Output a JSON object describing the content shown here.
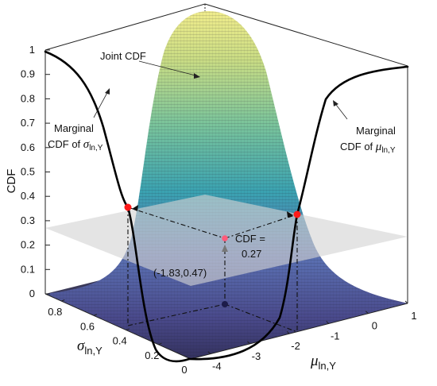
{
  "colors": {
    "surface_low": "#3c3a6e",
    "surface_mid": "#38a6b0",
    "surface_high": "#e8ea8a",
    "marginal_curve": "#000000",
    "marker_red": "#ff1a1a",
    "marker_dark": "#1c1c4a",
    "plane": "#cfcfcf"
  },
  "chart_data": {
    "type": "surface",
    "zlabel": "CDF",
    "xlabel": {
      "base": "σ",
      "sub": "ln,Y"
    },
    "ylabel": {
      "base": "μ",
      "sub": "ln,Y"
    },
    "xlim": [
      0,
      0.9
    ],
    "ylim": [
      -4.5,
      1
    ],
    "zlim": [
      0,
      1
    ],
    "x_ticks": [
      "0",
      "0.2",
      "0.4",
      "0.6",
      "0.8"
    ],
    "x_tick_values": [
      0,
      0.2,
      0.4,
      0.6,
      0.8
    ],
    "y_ticks": [
      "-4",
      "-3",
      "-2",
      "-1",
      "0",
      "1"
    ],
    "y_tick_values": [
      -4,
      -3,
      -2,
      -1,
      0,
      1
    ],
    "z_ticks": [
      "0",
      "0.1",
      "0.2",
      "0.3",
      "0.4",
      "0.5",
      "0.6",
      "0.7",
      "0.8",
      "0.9",
      "1"
    ],
    "z_tick_values": [
      0,
      0.1,
      0.2,
      0.3,
      0.4,
      0.5,
      0.6,
      0.7,
      0.8,
      0.9,
      1
    ],
    "point": {
      "sigma": 0.47,
      "mu": -1.83,
      "cdf": 0.27
    },
    "plane_level": 0.27,
    "annotations": {
      "joint": "Joint CDF",
      "marg_sigma_line1": "Marginal",
      "marg_sigma_line2": "CDF of ",
      "marg_mu_line1": "Marginal",
      "marg_mu_line2": "CDF of ",
      "point_label": "(-1.83,0.47)",
      "cdf_line1": "CDF =",
      "cdf_line2": "0.27"
    }
  }
}
